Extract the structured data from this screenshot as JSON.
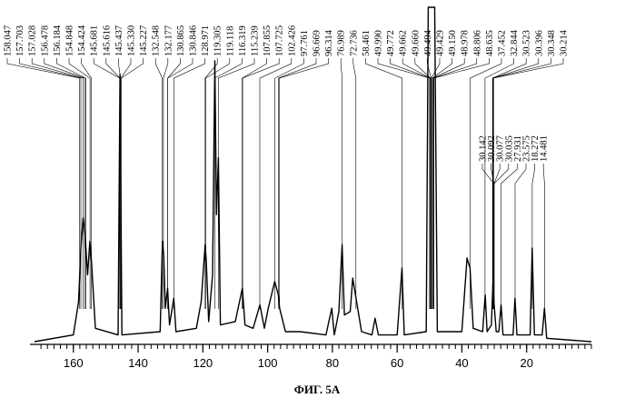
{
  "chart_data": {
    "type": "line",
    "title": "",
    "xlabel": "",
    "ylabel": "",
    "xlim": [
      172,
      0
    ],
    "x_reversed": true,
    "x_ticks": [
      160,
      140,
      120,
      100,
      80,
      60,
      40,
      20
    ],
    "grid": false,
    "legend": "none",
    "caption": "ФИГ. 5A",
    "peak_labels_upper": [
      "158.047",
      "157.703",
      "157.028",
      "156.478",
      "156.184",
      "154.848",
      "154.424",
      "145.681",
      "145.616",
      "145.437",
      "145.330",
      "145.227",
      "132.548",
      "132.177",
      "130.865",
      "130.846",
      "128.971",
      "119.305",
      "119.118",
      "116.319",
      "115.239",
      "107.855",
      "107.725",
      "102.426",
      "97.761",
      "96.669",
      "96.314",
      "76.989",
      "72.736",
      "58.461",
      "49.990",
      "49.772",
      "49.662",
      "49.660",
      "49.494",
      "49.429",
      "49.150",
      "48.978",
      "48.806",
      "48.635",
      "37.452",
      "32.844",
      "30.523",
      "30.396",
      "30.348",
      "30.214"
    ],
    "peak_labels_lower": [
      "30.142",
      "30.092",
      "30.077",
      "30.035",
      "27.931",
      "23.575",
      "18.272",
      "14.481"
    ],
    "spectrum": [
      {
        "shift": 172.0,
        "intensity": 0.0
      },
      {
        "shift": 160.0,
        "intensity": 0.02
      },
      {
        "shift": 158.4,
        "intensity": 0.12
      },
      {
        "shift": 157.7,
        "intensity": 0.28
      },
      {
        "shift": 157.0,
        "intensity": 0.37
      },
      {
        "shift": 156.4,
        "intensity": 0.32
      },
      {
        "shift": 155.6,
        "intensity": 0.2
      },
      {
        "shift": 154.9,
        "intensity": 0.3
      },
      {
        "shift": 154.4,
        "intensity": 0.24
      },
      {
        "shift": 153.2,
        "intensity": 0.04
      },
      {
        "shift": 146.2,
        "intensity": 0.02
      },
      {
        "shift": 145.6,
        "intensity": 0.8
      },
      {
        "shift": 145.0,
        "intensity": 0.02
      },
      {
        "shift": 133.2,
        "intensity": 0.03
      },
      {
        "shift": 132.5,
        "intensity": 0.3
      },
      {
        "shift": 132.1,
        "intensity": 0.26
      },
      {
        "shift": 131.6,
        "intensity": 0.1
      },
      {
        "shift": 130.9,
        "intensity": 0.16
      },
      {
        "shift": 130.3,
        "intensity": 0.05
      },
      {
        "shift": 129.0,
        "intensity": 0.13
      },
      {
        "shift": 128.3,
        "intensity": 0.03
      },
      {
        "shift": 122.0,
        "intensity": 0.04
      },
      {
        "shift": 120.5,
        "intensity": 0.12
      },
      {
        "shift": 119.3,
        "intensity": 0.29
      },
      {
        "shift": 119.0,
        "intensity": 0.25
      },
      {
        "shift": 118.2,
        "intensity": 0.06
      },
      {
        "shift": 117.0,
        "intensity": 0.2
      },
      {
        "shift": 116.3,
        "intensity": 0.84
      },
      {
        "shift": 115.8,
        "intensity": 0.38
      },
      {
        "shift": 115.2,
        "intensity": 0.55
      },
      {
        "shift": 114.6,
        "intensity": 0.05
      },
      {
        "shift": 110.0,
        "intensity": 0.06
      },
      {
        "shift": 107.8,
        "intensity": 0.16
      },
      {
        "shift": 107.0,
        "intensity": 0.05
      },
      {
        "shift": 104.5,
        "intensity": 0.04
      },
      {
        "shift": 102.4,
        "intensity": 0.11
      },
      {
        "shift": 101.0,
        "intensity": 0.04
      },
      {
        "shift": 99.8,
        "intensity": 0.1
      },
      {
        "shift": 97.8,
        "intensity": 0.18
      },
      {
        "shift": 96.7,
        "intensity": 0.14
      },
      {
        "shift": 96.3,
        "intensity": 0.1
      },
      {
        "shift": 94.5,
        "intensity": 0.03
      },
      {
        "shift": 90.0,
        "intensity": 0.03
      },
      {
        "shift": 82.0,
        "intensity": 0.02
      },
      {
        "shift": 80.2,
        "intensity": 0.1
      },
      {
        "shift": 79.4,
        "intensity": 0.02
      },
      {
        "shift": 78.0,
        "intensity": 0.09
      },
      {
        "shift": 77.0,
        "intensity": 0.29
      },
      {
        "shift": 76.3,
        "intensity": 0.08
      },
      {
        "shift": 74.5,
        "intensity": 0.09
      },
      {
        "shift": 73.7,
        "intensity": 0.19
      },
      {
        "shift": 72.7,
        "intensity": 0.13
      },
      {
        "shift": 71.0,
        "intensity": 0.03
      },
      {
        "shift": 67.8,
        "intensity": 0.02
      },
      {
        "shift": 66.8,
        "intensity": 0.07
      },
      {
        "shift": 65.8,
        "intensity": 0.02
      },
      {
        "shift": 60.0,
        "intensity": 0.02
      },
      {
        "shift": 58.5,
        "intensity": 0.22
      },
      {
        "shift": 57.8,
        "intensity": 0.02
      },
      {
        "shift": 51.0,
        "intensity": 0.03
      },
      {
        "shift": 50.4,
        "intensity": 1.0
      },
      {
        "shift": 48.4,
        "intensity": 1.0
      },
      {
        "shift": 47.6,
        "intensity": 0.03
      },
      {
        "shift": 40.0,
        "intensity": 0.03
      },
      {
        "shift": 38.4,
        "intensity": 0.25
      },
      {
        "shift": 37.5,
        "intensity": 0.22
      },
      {
        "shift": 36.5,
        "intensity": 0.04
      },
      {
        "shift": 33.6,
        "intensity": 0.03
      },
      {
        "shift": 32.8,
        "intensity": 0.14
      },
      {
        "shift": 32.2,
        "intensity": 0.03
      },
      {
        "shift": 30.9,
        "intensity": 0.05
      },
      {
        "shift": 30.4,
        "intensity": 0.18
      },
      {
        "shift": 30.1,
        "intensity": 0.12
      },
      {
        "shift": 29.4,
        "intensity": 0.03
      },
      {
        "shift": 28.6,
        "intensity": 0.03
      },
      {
        "shift": 27.9,
        "intensity": 0.11
      },
      {
        "shift": 27.3,
        "intensity": 0.02
      },
      {
        "shift": 24.2,
        "intensity": 0.02
      },
      {
        "shift": 23.6,
        "intensity": 0.13
      },
      {
        "shift": 23.0,
        "intensity": 0.02
      },
      {
        "shift": 18.9,
        "intensity": 0.02
      },
      {
        "shift": 18.3,
        "intensity": 0.28
      },
      {
        "shift": 17.6,
        "intensity": 0.02
      },
      {
        "shift": 15.2,
        "intensity": 0.02
      },
      {
        "shift": 14.5,
        "intensity": 0.1
      },
      {
        "shift": 13.8,
        "intensity": 0.01
      },
      {
        "shift": 0.0,
        "intensity": 0.0
      }
    ]
  }
}
